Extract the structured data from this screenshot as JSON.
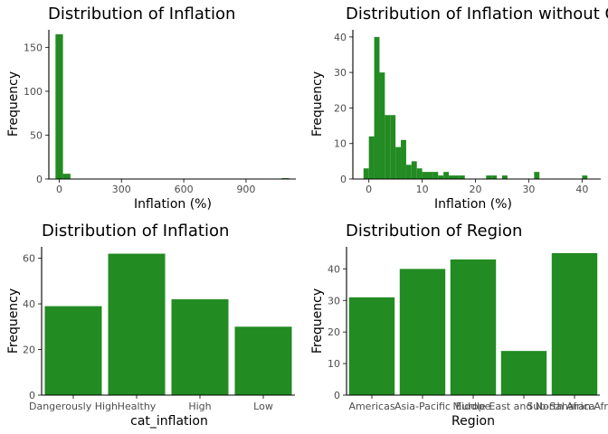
{
  "colors": {
    "bar": "#228b22",
    "axis": "#000000",
    "tick_text": "#4d4d4d",
    "background": "#ffffff"
  },
  "chart_data": [
    {
      "type": "bar",
      "subtype": "histogram",
      "title": "Distribution of Inflation",
      "xlabel": "Inflation (%)",
      "ylabel": "Frequency",
      "xlim": [
        -50,
        1140
      ],
      "ylim": [
        0,
        170
      ],
      "xticks": [
        0,
        300,
        600,
        900
      ],
      "yticks": [
        0,
        50,
        100,
        150
      ],
      "grid": false,
      "bins": [
        {
          "x0": -18,
          "x1": 18,
          "count": 165
        },
        {
          "x0": 18,
          "x1": 54,
          "count": 6
        },
        {
          "x0": 1072,
          "x1": 1108,
          "count": 1
        }
      ]
    },
    {
      "type": "bar",
      "subtype": "histogram",
      "title": "Distribution of Inflation without Outliers",
      "xlabel": "Inflation (%)",
      "ylabel": "Frequency",
      "xlim": [
        -3,
        43.5
      ],
      "ylim": [
        0,
        42
      ],
      "xticks": [
        0,
        10,
        20,
        30,
        40
      ],
      "yticks": [
        0,
        10,
        20,
        30,
        40
      ],
      "grid": false,
      "bins": [
        {
          "x0": -1,
          "x1": 0,
          "count": 3
        },
        {
          "x0": 0,
          "x1": 1,
          "count": 12
        },
        {
          "x0": 1,
          "x1": 2,
          "count": 40
        },
        {
          "x0": 2,
          "x1": 3,
          "count": 30
        },
        {
          "x0": 3,
          "x1": 4,
          "count": 18
        },
        {
          "x0": 4,
          "x1": 5,
          "count": 18
        },
        {
          "x0": 5,
          "x1": 6,
          "count": 9
        },
        {
          "x0": 6,
          "x1": 7,
          "count": 11
        },
        {
          "x0": 7,
          "x1": 8,
          "count": 4
        },
        {
          "x0": 8,
          "x1": 9,
          "count": 5
        },
        {
          "x0": 9,
          "x1": 10,
          "count": 3
        },
        {
          "x0": 10,
          "x1": 11,
          "count": 2
        },
        {
          "x0": 11,
          "x1": 12,
          "count": 2
        },
        {
          "x0": 12,
          "x1": 13,
          "count": 2
        },
        {
          "x0": 13,
          "x1": 14,
          "count": 1
        },
        {
          "x0": 14,
          "x1": 15,
          "count": 2
        },
        {
          "x0": 15,
          "x1": 16,
          "count": 1
        },
        {
          "x0": 16,
          "x1": 17,
          "count": 1
        },
        {
          "x0": 17,
          "x1": 18,
          "count": 1
        },
        {
          "x0": 22,
          "x1": 23,
          "count": 1
        },
        {
          "x0": 23,
          "x1": 24,
          "count": 1
        },
        {
          "x0": 25,
          "x1": 26,
          "count": 1
        },
        {
          "x0": 31,
          "x1": 32,
          "count": 2
        },
        {
          "x0": 40,
          "x1": 41,
          "count": 1
        }
      ]
    },
    {
      "type": "bar",
      "title": "Distribution of Inflation",
      "xlabel": "cat_inflation",
      "ylabel": "Frequency",
      "categories": [
        "Dangerously High",
        "Healthy",
        "High",
        "Low"
      ],
      "values": [
        39,
        62,
        42,
        30
      ],
      "ylim": [
        0,
        65
      ],
      "yticks": [
        0,
        20,
        40,
        60
      ],
      "grid": false
    },
    {
      "type": "bar",
      "title": "Distribution of Region",
      "xlabel": "Region",
      "ylabel": "Frequency",
      "categories": [
        "Americas",
        "Asia-Pacific",
        "Europe",
        "Middle East and North Africa",
        "Sub-Saharan Africa"
      ],
      "values": [
        31,
        40,
        43,
        14,
        45
      ],
      "ylim": [
        0,
        47
      ],
      "yticks": [
        0,
        10,
        20,
        30,
        40
      ],
      "grid": false
    }
  ]
}
